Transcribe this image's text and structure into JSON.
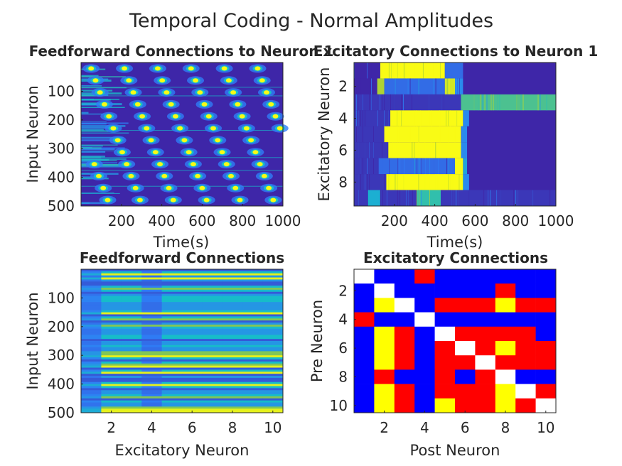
{
  "figure_title": "Temporal Coding - Normal Amplitudes",
  "colors": {
    "parula_dark": "#3e26a8",
    "parula_blue": "#2f7df6",
    "parula_cyan": "#17bcc9",
    "parula_green": "#9bc93a",
    "parula_yellow": "#f9fb15",
    "matrix_blue": "#0000ff",
    "matrix_red": "#ff0000",
    "matrix_yellow": "#ffff00",
    "matrix_white": "#ffffff"
  },
  "chart_data": [
    {
      "type": "heatmap",
      "title": "Feedforward Connections to Neuron 1",
      "xlabel": "Time(s)",
      "ylabel": "Input Neuron",
      "xlim": [
        0,
        1000
      ],
      "ylim": [
        0,
        500
      ],
      "y_reversed": true,
      "xticks": [
        200,
        400,
        600,
        800,
        1000
      ],
      "yticks": [
        100,
        200,
        300,
        400,
        500
      ],
      "colormap": "parula",
      "pattern": "dark background with bright yellow spots arranged along repeating diagonal bands across time"
    },
    {
      "type": "heatmap",
      "title": "Excitatory Connections to Neuron 1",
      "xlabel": "Time(s)",
      "ylabel": "Excitatory Neuron",
      "xlim": [
        0,
        1000
      ],
      "ylim": [
        0.5,
        9.5
      ],
      "y_reversed": true,
      "xticks": [
        200,
        400,
        600,
        800,
        1000
      ],
      "yticks": [
        2,
        4,
        6,
        8
      ],
      "colormap": "parula",
      "rows": [
        {
          "neuron": 1,
          "segments": [
            [
              0,
              130,
              0
            ],
            [
              130,
              450,
              1
            ],
            [
              450,
              540,
              0.2
            ]
          ]
        },
        {
          "neuron": 2,
          "segments": [
            [
              0,
              115,
              0
            ],
            [
              115,
              150,
              0.8
            ],
            [
              150,
              450,
              0.2
            ],
            [
              450,
              500,
              0.9
            ],
            [
              500,
              540,
              0.3
            ]
          ]
        },
        {
          "neuron": 3,
          "segments": [
            [
              0,
              530,
              0.05
            ],
            [
              530,
              1000,
              0.6
            ]
          ]
        },
        {
          "neuron": 4,
          "segments": [
            [
              0,
              180,
              0.05
            ],
            [
              180,
              540,
              1
            ],
            [
              540,
              570,
              0.3
            ]
          ]
        },
        {
          "neuron": 5,
          "segments": [
            [
              0,
              150,
              0.05
            ],
            [
              150,
              530,
              1
            ],
            [
              530,
              560,
              0.3
            ]
          ]
        },
        {
          "neuron": 6,
          "segments": [
            [
              0,
              170,
              0.05
            ],
            [
              170,
              530,
              1
            ],
            [
              530,
              560,
              0.3
            ]
          ]
        },
        {
          "neuron": 7,
          "segments": [
            [
              0,
              120,
              0.05
            ],
            [
              120,
              500,
              0.2
            ],
            [
              500,
              540,
              1
            ],
            [
              540,
              560,
              0.4
            ]
          ]
        },
        {
          "neuron": 8,
          "segments": [
            [
              0,
              160,
              0.05
            ],
            [
              160,
              540,
              1
            ],
            [
              540,
              570,
              0.3
            ]
          ]
        },
        {
          "neuron": 9,
          "segments": [
            [
              0,
              70,
              0.05
            ],
            [
              70,
              130,
              0.45
            ],
            [
              130,
              310,
              0.05
            ],
            [
              310,
              430,
              0.55
            ],
            [
              430,
              1000,
              0.05
            ]
          ]
        }
      ]
    },
    {
      "type": "heatmap",
      "title": "Feedforward Connections",
      "xlabel": "Excitatory Neuron",
      "ylabel": "Input Neuron",
      "xlim": [
        0.5,
        10.5
      ],
      "ylim": [
        0,
        500
      ],
      "y_reversed": true,
      "xticks": [
        2,
        4,
        6,
        8,
        10
      ],
      "yticks": [
        100,
        200,
        300,
        400,
        500
      ],
      "colormap": "parula",
      "pattern": "horizontal bands of alternating blue, cyan, green and yellow stripes, with darker columns at neurons 1 and 4"
    },
    {
      "type": "heatmap",
      "title": "Excitatory Connections",
      "xlabel": "Post Neuron",
      "ylabel": "Pre Neuron",
      "xlim": [
        0.5,
        10.5
      ],
      "ylim": [
        0.5,
        10.5
      ],
      "y_reversed": true,
      "xticks": [
        2,
        4,
        6,
        8,
        10
      ],
      "yticks": [
        2,
        4,
        6,
        8,
        10
      ],
      "legend": {
        "W": "white",
        "B": "blue",
        "Y": "yellow",
        "R": "red"
      },
      "matrix": [
        [
          "W",
          "B",
          "B",
          "R",
          "B",
          "B",
          "B",
          "B",
          "B",
          "B"
        ],
        [
          "B",
          "W",
          "B",
          "B",
          "B",
          "B",
          "B",
          "R",
          "B",
          "B"
        ],
        [
          "B",
          "Y",
          "W",
          "B",
          "R",
          "R",
          "R",
          "Y",
          "R",
          "R"
        ],
        [
          "R",
          "B",
          "B",
          "W",
          "B",
          "B",
          "B",
          "B",
          "B",
          "B"
        ],
        [
          "B",
          "Y",
          "R",
          "B",
          "W",
          "R",
          "R",
          "R",
          "R",
          "B"
        ],
        [
          "B",
          "Y",
          "R",
          "B",
          "R",
          "W",
          "R",
          "Y",
          "R",
          "R"
        ],
        [
          "B",
          "Y",
          "R",
          "B",
          "R",
          "R",
          "W",
          "R",
          "R",
          "R"
        ],
        [
          "B",
          "R",
          "B",
          "B",
          "R",
          "B",
          "R",
          "W",
          "B",
          "B"
        ],
        [
          "B",
          "Y",
          "R",
          "B",
          "R",
          "R",
          "R",
          "Y",
          "W",
          "R"
        ],
        [
          "B",
          "Y",
          "R",
          "B",
          "Y",
          "R",
          "R",
          "Y",
          "R",
          "W"
        ]
      ]
    }
  ]
}
